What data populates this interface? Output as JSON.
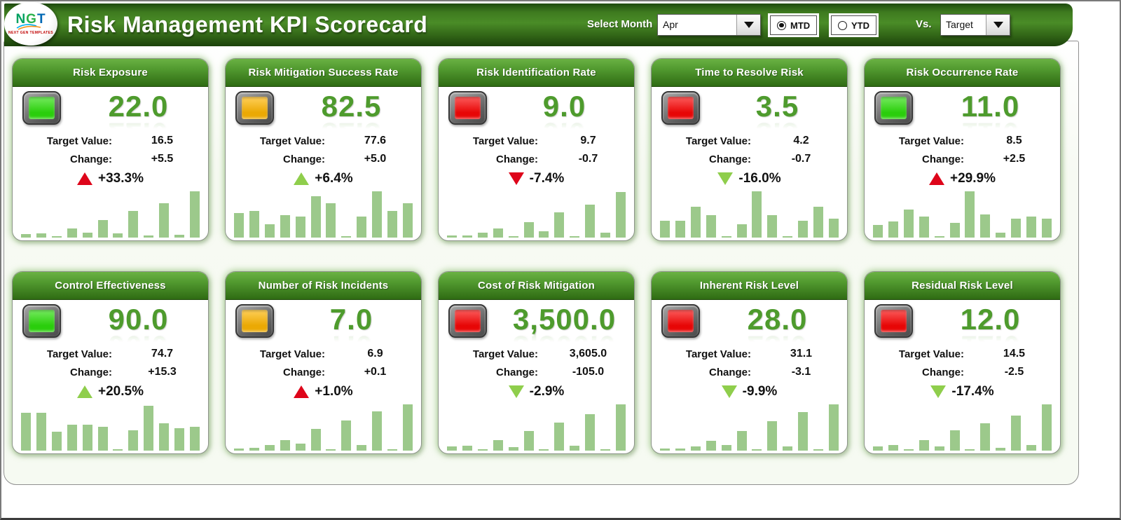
{
  "header": {
    "title": "Risk Management KPI Scorecard",
    "logo": {
      "text": "NGT",
      "subtext": "NEXT GEN TEMPLATES"
    },
    "select_month_label": "Select Month",
    "month_value": "Apr",
    "period_options": [
      {
        "label": "MTD",
        "selected": true
      },
      {
        "label": "YTD",
        "selected": false
      }
    ],
    "vs_label": "Vs.",
    "vs_value": "Target"
  },
  "colors": {
    "status_green": "#2ee00d",
    "status_amber": "#ffb704",
    "status_red": "#fb0707",
    "delta_red": "#de051a",
    "delta_green": "#8fce4c",
    "bar_green": "#9cc98b",
    "value_green": "#4e9b2d",
    "header_green": "#2f6b13"
  },
  "cards": [
    {
      "title": "Risk Exposure",
      "value": "22.0",
      "status": "green",
      "target_label": "Target Value:",
      "target_value": "16.5",
      "change_label": "Change:",
      "change_value": "+5.5",
      "delta_pct": "+33.3%",
      "delta_direction": "up",
      "delta_color": "red",
      "sparkline": [
        7,
        8,
        3,
        18,
        10,
        36,
        8,
        55,
        4,
        70,
        6,
        95
      ]
    },
    {
      "title": "Risk Mitigation Success Rate",
      "value": "82.5",
      "status": "amber",
      "target_label": "Target Value:",
      "target_value": "77.6",
      "change_label": "Change:",
      "change_value": "+5.0",
      "delta_pct": "+6.4%",
      "delta_direction": "up",
      "delta_color": "green",
      "sparkline": [
        50,
        55,
        27,
        46,
        43,
        85,
        70,
        3,
        43,
        95,
        55,
        70
      ]
    },
    {
      "title": "Risk Identification Rate",
      "value": "9.0",
      "status": "red",
      "target_label": "Target Value:",
      "target_value": "9.7",
      "change_label": "Change:",
      "change_value": "-0.7",
      "delta_pct": "-7.4%",
      "delta_direction": "down",
      "delta_color": "red",
      "sparkline": [
        4,
        4,
        10,
        18,
        3,
        32,
        13,
        52,
        3,
        67,
        10,
        93
      ]
    },
    {
      "title": "Time to Resolve Risk",
      "value": "3.5",
      "status": "red",
      "target_label": "Target Value:",
      "target_value": "4.2",
      "change_label": "Change:",
      "change_value": "-0.7",
      "delta_pct": "-16.0%",
      "delta_direction": "down",
      "delta_color": "green",
      "sparkline": [
        34,
        34,
        63,
        46,
        3,
        27,
        95,
        46,
        3,
        34,
        63,
        39
      ]
    },
    {
      "title": "Risk Occurrence Rate",
      "value": "11.0",
      "status": "green",
      "target_label": "Target Value:",
      "target_value": "8.5",
      "change_label": "Change:",
      "change_value": "+2.5",
      "delta_pct": "+29.9%",
      "delta_direction": "up",
      "delta_color": "red",
      "sparkline": [
        26,
        33,
        57,
        43,
        3,
        30,
        95,
        47,
        10,
        38,
        43,
        39
      ]
    },
    {
      "title": "Control Effectiveness",
      "value": "90.0",
      "status": "green",
      "target_label": "Target Value:",
      "target_value": "74.7",
      "change_label": "Change:",
      "change_value": "+15.3",
      "delta_pct": "+20.5%",
      "delta_direction": "up",
      "delta_color": "green",
      "sparkline": [
        77,
        77,
        39,
        53,
        53,
        49,
        3,
        42,
        91,
        56,
        46,
        49
      ]
    },
    {
      "title": "Number of Risk Incidents",
      "value": "7.0",
      "status": "amber",
      "target_label": "Target Value:",
      "target_value": "6.9",
      "change_label": "Change:",
      "change_value": "+0.1",
      "delta_pct": "+1.0%",
      "delta_direction": "up",
      "delta_color": "red",
      "sparkline": [
        4,
        6,
        12,
        22,
        15,
        44,
        3,
        62,
        12,
        80,
        3,
        95
      ]
    },
    {
      "title": "Cost of Risk Mitigation",
      "value": "3,500.0",
      "status": "red",
      "target_label": "Target Value:",
      "target_value": "3,605.0",
      "change_label": "Change:",
      "change_value": "-105.0",
      "delta_pct": "-2.9%",
      "delta_direction": "down",
      "delta_color": "green",
      "sparkline": [
        8,
        10,
        3,
        21,
        7,
        40,
        3,
        57,
        10,
        74,
        3,
        95
      ]
    },
    {
      "title": "Inherent Risk Level",
      "value": "28.0",
      "status": "red",
      "target_label": "Target Value:",
      "target_value": "31.1",
      "change_label": "Change:",
      "change_value": "-3.1",
      "delta_pct": "-9.9%",
      "delta_direction": "down",
      "delta_color": "green",
      "sparkline": [
        4,
        4,
        9,
        20,
        11,
        40,
        3,
        60,
        9,
        78,
        3,
        95
      ]
    },
    {
      "title": "Residual Risk Level",
      "value": "12.0",
      "status": "red",
      "target_label": "Target Value:",
      "target_value": "14.5",
      "change_label": "Change:",
      "change_value": "-2.5",
      "delta_pct": "-17.4%",
      "delta_direction": "down",
      "delta_color": "green",
      "sparkline": [
        8,
        11,
        3,
        22,
        8,
        42,
        3,
        56,
        6,
        72,
        11,
        95
      ]
    }
  ]
}
